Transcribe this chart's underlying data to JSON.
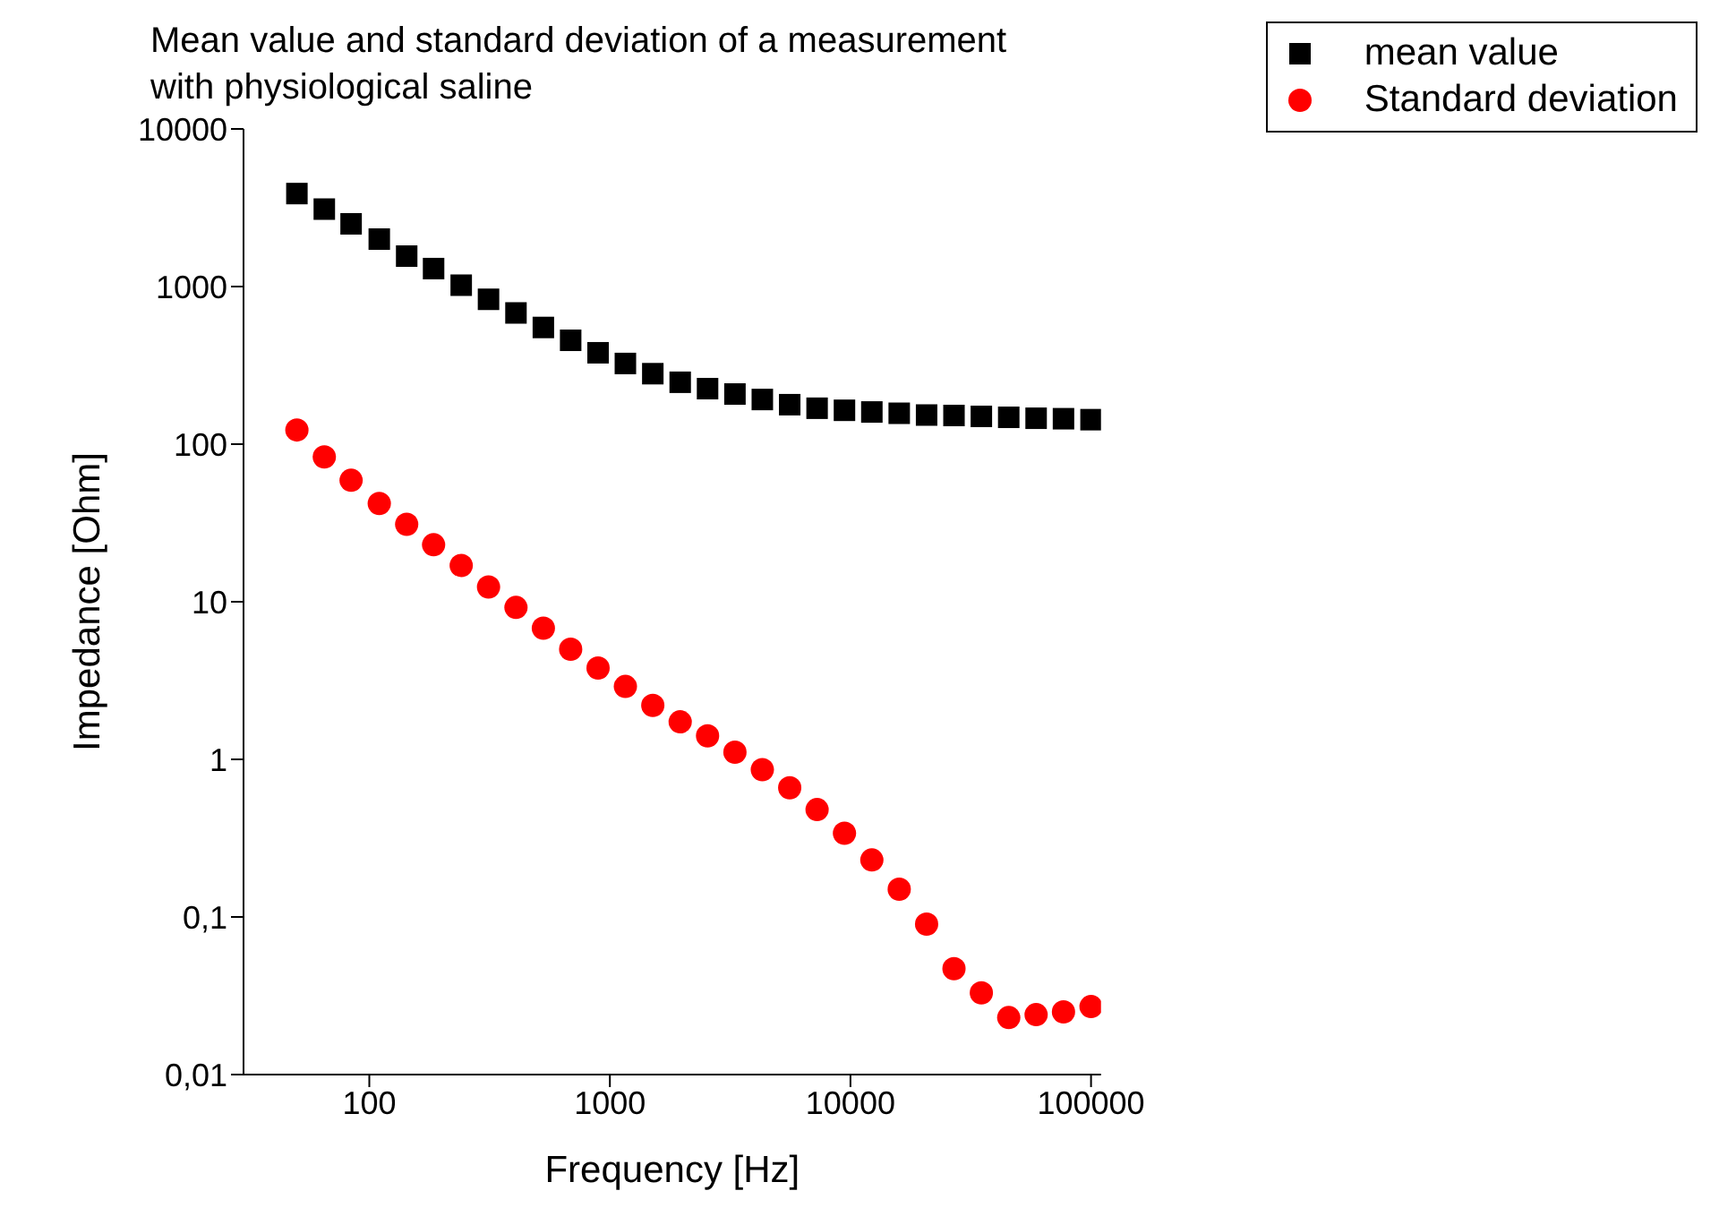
{
  "chart_data": {
    "type": "scatter",
    "title": "Mean value and standard deviation of a measurement with physiological saline",
    "xlabel": "Frequency [Hz]",
    "ylabel": "Impedance [Ohm]",
    "log": "xy",
    "legend": "top right",
    "x": [
      50,
      65,
      84,
      110,
      143,
      185,
      241,
      313,
      407,
      529,
      687,
      893,
      1160,
      1508,
      1960,
      2547,
      3310,
      4302,
      5591,
      7266,
      9443,
      12272,
      15948,
      20726,
      26936,
      35005,
      45492,
      59121,
      76833,
      100000
    ],
    "xlim": [
      30,
      110000
    ],
    "xticks": [
      100,
      1000,
      10000,
      100000
    ],
    "ylim": [
      0.01,
      10000
    ],
    "yticks": [
      {
        "value": 0.01,
        "label": "0,01"
      },
      {
        "value": 0.1,
        "label": "0,1"
      },
      1,
      10,
      100,
      1000,
      10000
    ],
    "series": [
      {
        "name": "mean value",
        "color": "#000000",
        "marker": "square",
        "values": [
          3890,
          3100,
          2500,
          2000,
          1560,
          1300,
          1020,
          830,
          680,
          550,
          456,
          380,
          325,
          280,
          247,
          225,
          208,
          192,
          178,
          169,
          164,
          160,
          157,
          153,
          152,
          150,
          148,
          146,
          145,
          143
        ]
      },
      {
        "name": "Standard deviation",
        "color": "#ff0000",
        "marker": "circle",
        "values": [
          123,
          83,
          59,
          42,
          31,
          23,
          17,
          12.4,
          9.2,
          6.8,
          5.0,
          3.8,
          2.9,
          2.2,
          1.73,
          1.41,
          1.11,
          0.86,
          0.66,
          0.48,
          0.34,
          0.23,
          0.15,
          0.09,
          0.047,
          0.033,
          0.023,
          0.024,
          0.025,
          0.027
        ]
      }
    ]
  }
}
